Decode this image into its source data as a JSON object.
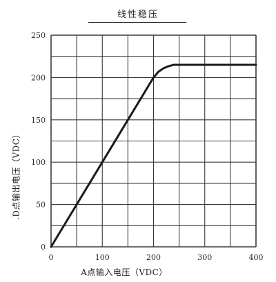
{
  "chart_data": {
    "type": "line",
    "title": "线性稳压",
    "xlabel": "A点输入电压（VDC）",
    "ylabel": ".D点输出电压（VDC）",
    "xlim": [
      0,
      400
    ],
    "ylim": [
      0,
      250
    ],
    "x_ticks": [
      0,
      100,
      200,
      300,
      400
    ],
    "y_ticks": [
      0,
      50,
      100,
      150,
      200,
      250
    ],
    "grid": true,
    "series": [
      {
        "x": [
          0,
          50,
          100,
          150,
          200,
          210,
          220,
          230,
          240,
          250,
          300,
          350,
          400
        ],
        "y": [
          0,
          50,
          100,
          150,
          200,
          207,
          211,
          213.5,
          215,
          215,
          215,
          215,
          215
        ]
      }
    ],
    "colors": {
      "line": "#1a1a1a",
      "grid": "#3a3a3a"
    }
  }
}
